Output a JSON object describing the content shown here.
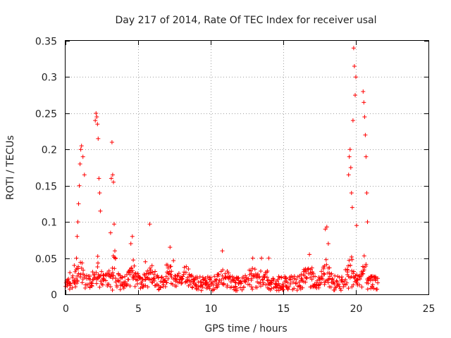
{
  "chart_data": {
    "type": "scatter",
    "title": "Day 217 of 2014, Rate Of TEC Index for receiver usal",
    "xlabel": "GPS time / hours",
    "ylabel": "ROTI / TECUs",
    "xlim": [
      0,
      25
    ],
    "ylim": [
      0,
      0.35
    ],
    "xticks": [
      0,
      5,
      10,
      15,
      20,
      25
    ],
    "xtick_labels": [
      "0",
      "5",
      "10",
      "15",
      "20",
      "25"
    ],
    "yticks": [
      0,
      0.05,
      0.1,
      0.15,
      0.2,
      0.25,
      0.3,
      0.35
    ],
    "ytick_labels": [
      "0",
      "0.05",
      "0.1",
      "0.15",
      "0.2",
      "0.25",
      "0.3",
      "0.35"
    ],
    "grid": true,
    "marker": "+",
    "color": "#ff0000",
    "data_extent_hours": [
      0,
      21.5
    ],
    "baseline_range": [
      0.005,
      0.025
    ],
    "series": [
      {
        "name": "ROTI",
        "x": [
          0.3,
          0.6,
          0.75,
          0.8,
          0.85,
          0.9,
          0.95,
          1.0,
          1.05,
          1.1,
          1.2,
          1.3,
          2.05,
          2.1,
          2.15,
          2.2,
          2.25,
          2.3,
          2.35,
          2.4,
          3.1,
          3.15,
          3.2,
          3.25,
          3.3,
          3.35,
          3.4,
          4.5,
          4.6,
          5.5,
          5.8,
          7.2,
          10.8,
          12.9,
          13.5,
          14.0,
          16.8,
          17.9,
          18.0,
          18.1,
          19.5,
          19.55,
          19.6,
          19.65,
          19.7,
          19.75,
          19.8,
          19.85,
          19.9,
          19.95,
          20.0,
          20.05,
          20.5,
          20.55,
          20.6,
          20.65,
          20.7,
          20.75,
          20.8
        ],
        "y": [
          0.03,
          0.04,
          0.05,
          0.08,
          0.1,
          0.125,
          0.15,
          0.18,
          0.2,
          0.205,
          0.19,
          0.165,
          0.24,
          0.25,
          0.245,
          0.235,
          0.215,
          0.16,
          0.14,
          0.115,
          0.085,
          0.16,
          0.21,
          0.165,
          0.155,
          0.097,
          0.06,
          0.07,
          0.08,
          0.045,
          0.097,
          0.065,
          0.06,
          0.05,
          0.05,
          0.05,
          0.055,
          0.09,
          0.093,
          0.07,
          0.165,
          0.19,
          0.2,
          0.175,
          0.14,
          0.12,
          0.24,
          0.34,
          0.315,
          0.275,
          0.3,
          0.095,
          0.28,
          0.265,
          0.245,
          0.22,
          0.19,
          0.14,
          0.1
        ]
      }
    ]
  }
}
